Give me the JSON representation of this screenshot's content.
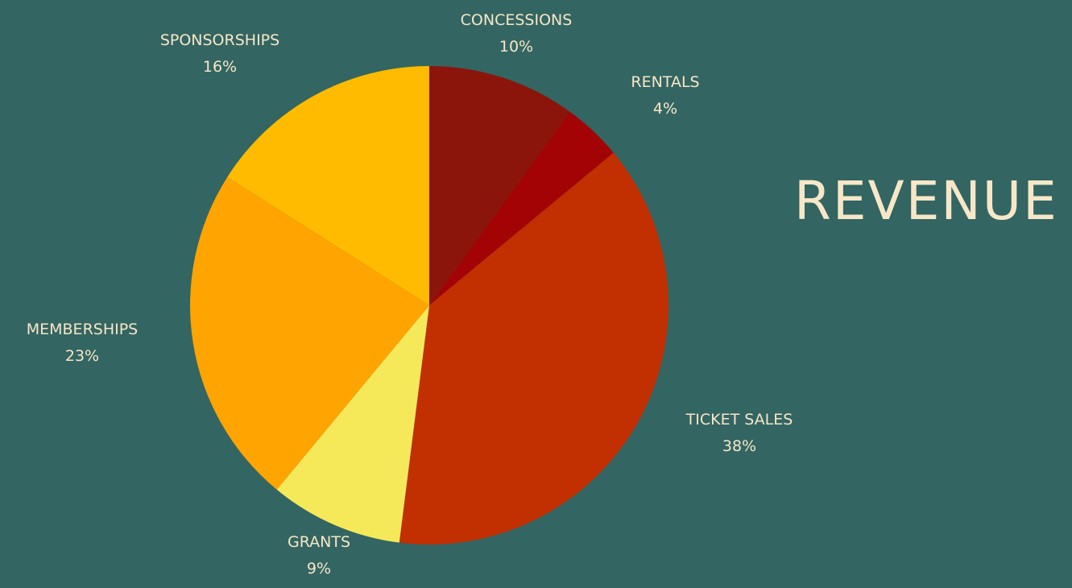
{
  "chart_data": {
    "type": "pie",
    "title": "REVENUE",
    "start_angle_degrees": 0,
    "direction": "clockwise",
    "slices": [
      {
        "label": "CONCESSIONS",
        "value": 10,
        "value_label": "10%",
        "color": "#8b150b"
      },
      {
        "label": "RENTALS",
        "value": 4,
        "value_label": "4%",
        "color": "#a30304"
      },
      {
        "label": "TICKET SALES",
        "value": 38,
        "value_label": "38%",
        "color": "#c22f01"
      },
      {
        "label": "GRANTS",
        "value": 9,
        "value_label": "9%",
        "color": "#f5e95a"
      },
      {
        "label": "MEMBERSHIPS",
        "value": 23,
        "value_label": "23%",
        "color": "#ffa400"
      },
      {
        "label": "SPONSORSHIPS",
        "value": 16,
        "value_label": "16%",
        "color": "#ffbb00"
      }
    ]
  },
  "colors": {
    "background": "#336562",
    "text": "#f7e7c7"
  }
}
